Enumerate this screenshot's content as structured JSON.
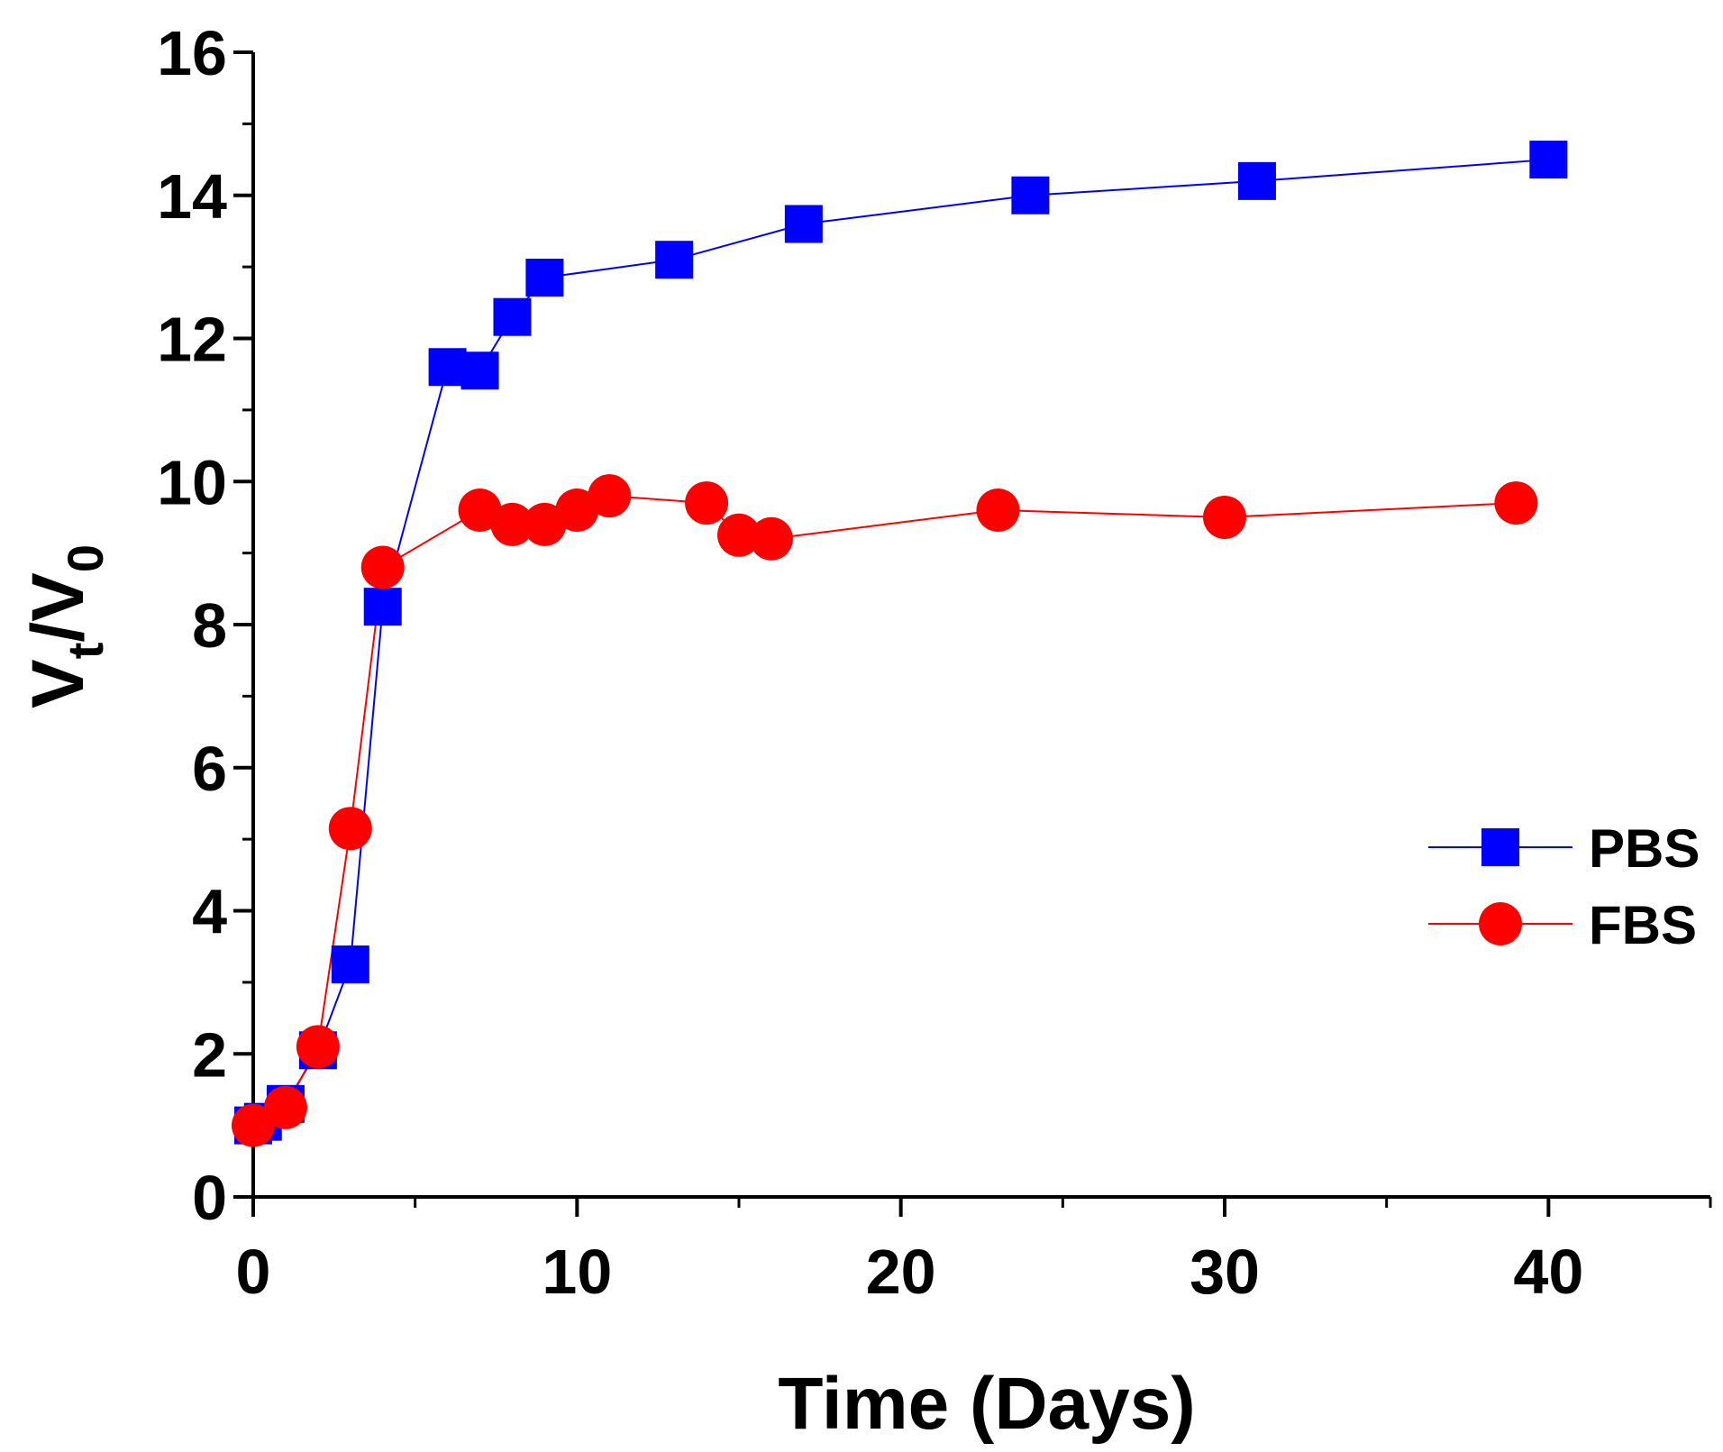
{
  "chart_data": {
    "type": "line",
    "title": "",
    "xlabel": "Time (Days)",
    "ylabel": {
      "main": "V",
      "sub_t": "t",
      "slash": "/",
      "main2": "V",
      "sub_0": "0"
    },
    "xlim": [
      0,
      45
    ],
    "ylim": [
      0,
      16
    ],
    "x_ticks": [
      0,
      10,
      20,
      30,
      40
    ],
    "x_minor_ticks": [
      5,
      15,
      25,
      35,
      45
    ],
    "y_ticks": [
      0,
      2,
      4,
      6,
      8,
      10,
      12,
      14,
      16
    ],
    "y_minor_ticks": [
      1,
      3,
      5,
      7,
      9,
      11,
      13,
      15
    ],
    "grid": false,
    "legend_position": "right",
    "series": [
      {
        "name": "PBS",
        "color": "#0000ff",
        "marker": "square",
        "x": [
          0,
          0.3,
          1,
          2,
          3,
          4,
          6,
          7,
          8,
          9,
          13,
          17,
          24,
          31,
          40
        ],
        "y": [
          1.0,
          1.05,
          1.3,
          2.05,
          3.25,
          8.25,
          11.6,
          11.55,
          12.3,
          12.85,
          13.1,
          13.6,
          14.0,
          14.2,
          14.5
        ]
      },
      {
        "name": "FBS",
        "color": "#ff0000",
        "marker": "circle",
        "x": [
          0,
          1,
          2,
          3,
          4,
          7,
          8,
          9,
          10,
          11,
          14,
          15,
          16,
          23,
          30,
          39
        ],
        "y": [
          1.0,
          1.25,
          2.1,
          5.15,
          8.8,
          9.6,
          9.4,
          9.4,
          9.6,
          9.8,
          9.7,
          9.25,
          9.2,
          9.6,
          9.5,
          9.7
        ]
      }
    ]
  }
}
